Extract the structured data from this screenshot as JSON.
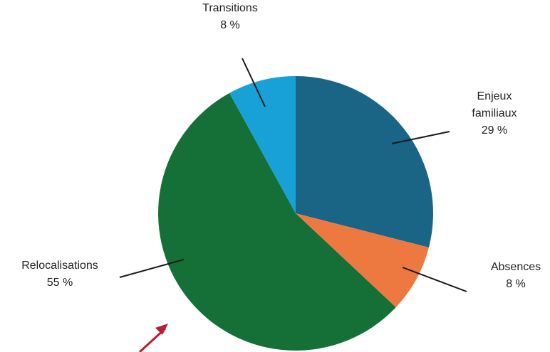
{
  "chart_data": {
    "type": "pie",
    "title": "",
    "start_angle_deg": 0,
    "direction": "clockwise",
    "slices": [
      {
        "label_lines": [
          "Enjeux",
          "familiaux"
        ],
        "value_label": "29 %",
        "value": 29,
        "color": "#1a6585"
      },
      {
        "label_lines": [
          "Absences"
        ],
        "value_label": "8 %",
        "value": 8,
        "color": "#ee7940"
      },
      {
        "label_lines": [
          "Relocalisations"
        ],
        "value_label": "55 %",
        "value": 55,
        "color": "#157037"
      },
      {
        "label_lines": [
          "Transitions"
        ],
        "value_label": "8 %",
        "value": 8,
        "color": "#18a1d6"
      }
    ],
    "legend": "none",
    "annotation_arrow_color": "#b3202e"
  }
}
